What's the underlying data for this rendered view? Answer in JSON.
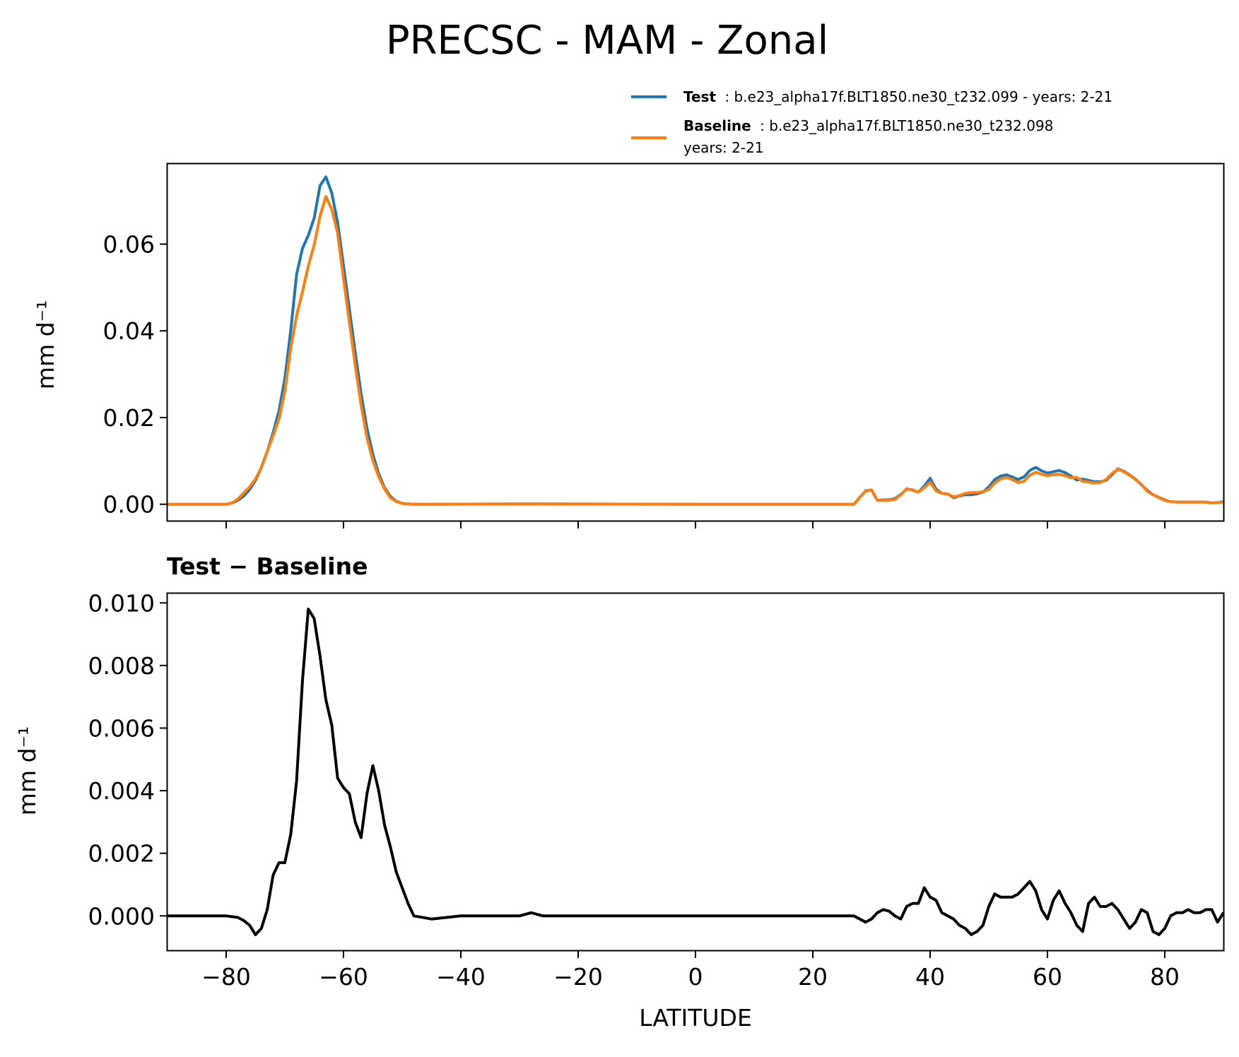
{
  "figure_title": "PRECSC - MAM - Zonal",
  "legend": {
    "test": {
      "name": "Test",
      "desc": ": b.e23_alpha17f.BLT1850.ne30_t232.099 - years: 2-21",
      "color": "#1f77b4"
    },
    "baseline": {
      "name": "Baseline",
      "desc": ": b.e23_alpha17f.BLT1850.ne30_t232.098",
      "desc2": "years: 2-21",
      "color": "#ff7f0e"
    }
  },
  "chart_data": [
    {
      "type": "line",
      "title": "",
      "xlabel": "",
      "ylabel": "mm d⁻¹",
      "xlim": [
        -90,
        90
      ],
      "ylim": [
        -0.0038,
        0.0785
      ],
      "yticks": [
        0.0,
        0.02,
        0.04,
        0.06
      ],
      "ytick_labels": [
        "0.00",
        "0.02",
        "0.04",
        "0.06"
      ],
      "series": [
        {
          "name": "Test",
          "color": "#1f77b4",
          "x": [
            -90,
            -80,
            -79,
            -78,
            -77,
            -76,
            -75,
            -74,
            -73,
            -72,
            -71,
            -70,
            -69,
            -68,
            -67,
            -66,
            -65,
            -64,
            -63,
            -62,
            -61,
            -60,
            -59,
            -58,
            -57,
            -56,
            -55,
            -54,
            -53,
            -52,
            -51,
            -50,
            -49,
            -48,
            -45,
            -30,
            0,
            25,
            27,
            28,
            29,
            30,
            31,
            32,
            33,
            34,
            35,
            36,
            37,
            38,
            39,
            40,
            41,
            42,
            43,
            44,
            45,
            46,
            47,
            48,
            49,
            50,
            51,
            52,
            53,
            54,
            55,
            56,
            57,
            58,
            59,
            60,
            61,
            62,
            63,
            64,
            65,
            66,
            67,
            68,
            69,
            70,
            71,
            72,
            73,
            74,
            75,
            76,
            77,
            78,
            79,
            80,
            81,
            82,
            83,
            84,
            85,
            86,
            87,
            88,
            89,
            90
          ],
          "values": [
            0.0,
            0.0,
            0.0003,
            0.0009,
            0.0019,
            0.0034,
            0.0055,
            0.0085,
            0.0122,
            0.0165,
            0.0215,
            0.029,
            0.04,
            0.053,
            0.059,
            0.062,
            0.066,
            0.0735,
            0.0755,
            0.0718,
            0.065,
            0.055,
            0.045,
            0.035,
            0.0255,
            0.0175,
            0.0115,
            0.007,
            0.0038,
            0.0018,
            0.0007,
            0.0002,
            0.0001,
            0.0,
            0.0,
            0.0001,
            0.0,
            0.0,
            0.0,
            0.0016,
            0.0031,
            0.0033,
            0.0009,
            0.001,
            0.001,
            0.0013,
            0.0023,
            0.0035,
            0.0033,
            0.0028,
            0.0042,
            0.006,
            0.0035,
            0.0025,
            0.0024,
            0.0015,
            0.0019,
            0.0022,
            0.0022,
            0.0024,
            0.0028,
            0.004,
            0.0057,
            0.0065,
            0.0068,
            0.0063,
            0.0057,
            0.0063,
            0.0078,
            0.0085,
            0.0077,
            0.0072,
            0.0075,
            0.0078,
            0.0073,
            0.0065,
            0.0056,
            0.0058,
            0.0055,
            0.0052,
            0.0052,
            0.0055,
            0.0068,
            0.0082,
            0.0076,
            0.0068,
            0.0058,
            0.0045,
            0.0032,
            0.0022,
            0.0016,
            0.001,
            0.0006,
            0.0005,
            0.0005,
            0.0005,
            0.0005,
            0.0005,
            0.0005,
            0.0003,
            0.0004,
            0.0006
          ]
        },
        {
          "name": "Baseline",
          "color": "#ff7f0e",
          "x": [
            -90,
            -80,
            -79,
            -78,
            -77,
            -76,
            -75,
            -74,
            -73,
            -72,
            -71,
            -70,
            -69,
            -68,
            -67,
            -66,
            -65,
            -64,
            -63,
            -62,
            -61,
            -60,
            -59,
            -58,
            -57,
            -56,
            -55,
            -54,
            -53,
            -52,
            -51,
            -50,
            -49,
            -48,
            -45,
            -30,
            0,
            25,
            27,
            28,
            29,
            30,
            31,
            32,
            33,
            34,
            35,
            36,
            37,
            38,
            39,
            40,
            41,
            42,
            43,
            44,
            45,
            46,
            47,
            48,
            49,
            50,
            51,
            52,
            53,
            54,
            55,
            56,
            57,
            58,
            59,
            60,
            61,
            62,
            63,
            64,
            65,
            66,
            67,
            68,
            69,
            70,
            71,
            72,
            73,
            74,
            75,
            76,
            77,
            78,
            79,
            80,
            81,
            82,
            83,
            84,
            85,
            86,
            87,
            88,
            89,
            90
          ],
          "values": [
            0.0,
            0.0,
            0.0003,
            0.0012,
            0.0026,
            0.004,
            0.0058,
            0.0085,
            0.0122,
            0.0158,
            0.0197,
            0.026,
            0.036,
            0.0435,
            0.049,
            0.055,
            0.0598,
            0.0665,
            0.071,
            0.068,
            0.0625,
            0.052,
            0.042,
            0.032,
            0.0229,
            0.0153,
            0.0101,
            0.0063,
            0.0035,
            0.0015,
            0.0006,
            0.0002,
            0.0001,
            0.0,
            0.0,
            0.0001,
            0.0,
            0.0,
            0.0,
            0.0016,
            0.003,
            0.0033,
            0.0009,
            0.0009,
            0.0009,
            0.0011,
            0.0022,
            0.0036,
            0.0032,
            0.0028,
            0.0038,
            0.0051,
            0.0031,
            0.0025,
            0.0024,
            0.0017,
            0.002,
            0.0025,
            0.0027,
            0.0027,
            0.0029,
            0.0034,
            0.0049,
            0.0058,
            0.0062,
            0.0057,
            0.005,
            0.0053,
            0.0067,
            0.0074,
            0.0069,
            0.0066,
            0.0068,
            0.0069,
            0.0066,
            0.0061,
            0.0062,
            0.0053,
            0.0051,
            0.0049,
            0.005,
            0.0057,
            0.0071,
            0.0081,
            0.0075,
            0.0067,
            0.0057,
            0.0046,
            0.003,
            0.0022,
            0.0015,
            0.0009,
            0.0006,
            0.0005,
            0.0005,
            0.0005,
            0.0005,
            0.0005,
            0.0005,
            0.0003,
            0.0004,
            0.0005
          ]
        }
      ]
    },
    {
      "type": "line",
      "title": "Test − Baseline",
      "xlabel": "LATITUDE",
      "ylabel": "mm d⁻¹",
      "xlim": [
        -90,
        90
      ],
      "ylim": [
        -0.0011,
        0.0103
      ],
      "xticks": [
        -80,
        -60,
        -40,
        -20,
        0,
        20,
        40,
        60,
        80
      ],
      "xtick_labels": [
        "−80",
        "−60",
        "−40",
        "−20",
        "0",
        "20",
        "40",
        "60",
        "80"
      ],
      "yticks": [
        0.0,
        0.002,
        0.004,
        0.006,
        0.008,
        0.01
      ],
      "ytick_labels": [
        "0.000",
        "0.002",
        "0.004",
        "0.006",
        "0.008",
        "0.010"
      ],
      "series": [
        {
          "name": "Test - Baseline",
          "color": "#000000",
          "x": [
            -90,
            -85,
            -80,
            -78,
            -77,
            -76,
            -75,
            -74,
            -73,
            -72,
            -71,
            -70,
            -69,
            -68,
            -67,
            -66,
            -65,
            -64,
            -63,
            -62,
            -61,
            -60,
            -59,
            -58,
            -57,
            -56,
            -55,
            -54,
            -53,
            -52,
            -51,
            -50,
            -49,
            -48,
            -45,
            -40,
            -35,
            -30,
            -28,
            -26,
            -25,
            -20,
            0,
            20,
            26,
            27,
            28,
            29,
            30,
            31,
            32,
            33,
            34,
            35,
            36,
            37,
            38,
            39,
            40,
            41,
            42,
            43,
            44,
            45,
            46,
            47,
            48,
            49,
            50,
            51,
            52,
            53,
            54,
            55,
            56,
            57,
            58,
            59,
            60,
            61,
            62,
            63,
            64,
            65,
            66,
            67,
            68,
            69,
            70,
            71,
            72,
            73,
            74,
            75,
            76,
            77,
            78,
            79,
            80,
            81,
            82,
            83,
            84,
            85,
            86,
            87,
            88,
            89,
            90
          ],
          "values": [
            0.0,
            0.0,
            0.0,
            -5e-05,
            -0.00015,
            -0.0003,
            -0.0006,
            -0.0004,
            0.0002,
            0.0013,
            0.0017,
            0.0017,
            0.0026,
            0.0043,
            0.0075,
            0.0098,
            0.0095,
            0.0083,
            0.0069,
            0.0061,
            0.0044,
            0.0041,
            0.0039,
            0.003,
            0.0025,
            0.0039,
            0.0048,
            0.004,
            0.0029,
            0.0022,
            0.0014,
            0.0009,
            0.0004,
            0.0,
            -0.0001,
            0.0,
            0.0,
            0.0,
            0.0001,
            0.0,
            0.0,
            0.0,
            0.0,
            0.0,
            0.0,
            0.0,
            -0.0001,
            -0.0002,
            -0.0001,
            0.0001,
            0.0002,
            0.00015,
            0.0,
            -0.0001,
            0.0003,
            0.0004,
            0.0004,
            0.0009,
            0.0006,
            0.0005,
            0.0001,
            0.0,
            -0.0001,
            -0.0003,
            -0.0004,
            -0.0006,
            -0.0005,
            -0.0003,
            0.0003,
            0.0007,
            0.0006,
            0.0006,
            0.0006,
            0.0007,
            0.0009,
            0.0011,
            0.0008,
            0.0002,
            -0.0001,
            0.0005,
            0.0008,
            0.0004,
            0.0001,
            -0.0003,
            -0.0005,
            0.0004,
            0.0006,
            0.0003,
            0.0003,
            0.0004,
            0.0002,
            -0.0001,
            -0.0004,
            -0.0002,
            0.0002,
            0.0001,
            -0.0005,
            -0.0006,
            -0.0004,
            0.0,
            0.0001,
            0.0001,
            0.0002,
            0.0001,
            0.0001,
            0.0002,
            0.0002,
            -0.0002,
            0.0001
          ]
        }
      ]
    }
  ]
}
